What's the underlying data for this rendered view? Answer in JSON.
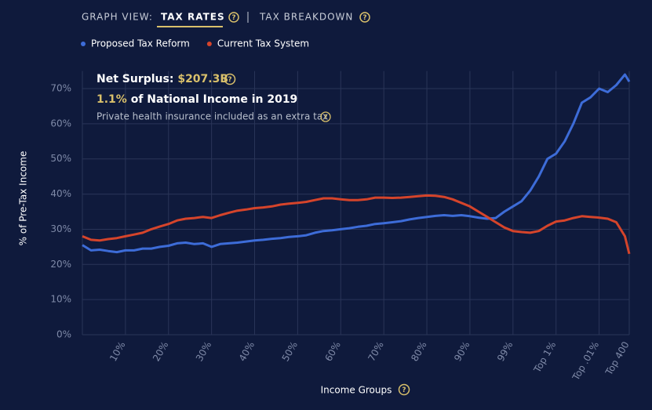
{
  "header": {
    "view_label": "GRAPH VIEW:",
    "tabs": [
      "TAX RATES",
      "TAX BREAKDOWN"
    ]
  },
  "chart_data": {
    "type": "line",
    "ylabel": "% of Pre-Tax Income",
    "xlabel": "Income Groups",
    "annotation": {
      "label": "Net Surplus:",
      "value": "$207.3B",
      "share": "1.1%",
      "share_text": "of National Income in 2019",
      "note": "Private health insurance included as an extra tax"
    },
    "x": [
      0,
      2,
      4,
      6,
      8,
      10,
      12,
      14,
      16,
      18,
      20,
      22,
      24,
      26,
      28,
      30,
      32,
      34,
      36,
      38,
      40,
      42,
      44,
      46,
      48,
      50,
      52,
      54,
      56,
      58,
      60,
      62,
      64,
      66,
      68,
      70,
      72,
      74,
      76,
      78,
      80,
      82,
      84,
      86,
      88,
      90,
      92,
      94,
      96,
      98,
      100,
      102,
      104,
      106,
      108,
      110,
      112,
      114,
      116,
      118,
      120,
      122,
      124,
      126,
      127
    ],
    "xlim": [
      0,
      127
    ],
    "xticks": [
      {
        "value": 10,
        "label": "10%"
      },
      {
        "value": 20,
        "label": "20%"
      },
      {
        "value": 30,
        "label": "30%"
      },
      {
        "value": 40,
        "label": "40%"
      },
      {
        "value": 50,
        "label": "50%"
      },
      {
        "value": 60,
        "label": "60%"
      },
      {
        "value": 70,
        "label": "70%"
      },
      {
        "value": 80,
        "label": "80%"
      },
      {
        "value": 90,
        "label": "90%"
      },
      {
        "value": 100,
        "label": "99%"
      },
      {
        "value": 110,
        "label": "Top 1%"
      },
      {
        "value": 120,
        "label": "Top .01%"
      },
      {
        "value": 127,
        "label": "Top 400"
      }
    ],
    "ylim": [
      0,
      75
    ],
    "yticks": [
      {
        "value": 0,
        "label": "0%"
      },
      {
        "value": 10,
        "label": "10%"
      },
      {
        "value": 20,
        "label": "20%"
      },
      {
        "value": 30,
        "label": "30%"
      },
      {
        "value": 40,
        "label": "40%"
      },
      {
        "value": 50,
        "label": "50%"
      },
      {
        "value": 60,
        "label": "60%"
      },
      {
        "value": 70,
        "label": "70%"
      }
    ],
    "grid": true,
    "series": [
      {
        "name": "Proposed Tax Reform",
        "color": "#3d6cd8",
        "values": [
          25.5,
          24,
          24.2,
          23.8,
          23.5,
          24,
          24,
          24.5,
          24.5,
          25,
          25.3,
          26,
          26.2,
          25.8,
          26,
          25,
          25.8,
          26,
          26.2,
          26.5,
          26.8,
          27,
          27.3,
          27.5,
          27.8,
          28,
          28.3,
          29,
          29.5,
          29.7,
          30,
          30.3,
          30.7,
          31,
          31.5,
          31.7,
          32,
          32.3,
          32.8,
          33.2,
          33.5,
          33.8,
          34,
          33.8,
          34,
          33.7,
          33.3,
          33,
          33.2,
          35,
          36.5,
          38,
          41,
          45,
          50,
          51.5,
          55,
          60,
          66,
          67.5,
          70,
          69,
          71,
          74,
          72
        ]
      },
      {
        "name": "Current Tax System",
        "color": "#d5442b",
        "values": [
          28,
          27,
          26.8,
          27.2,
          27.5,
          28,
          28.5,
          29,
          30,
          30.8,
          31.5,
          32.5,
          33,
          33.2,
          33.5,
          33.2,
          34,
          34.7,
          35.3,
          35.6,
          36,
          36.2,
          36.5,
          37,
          37.3,
          37.5,
          37.8,
          38.3,
          38.8,
          38.8,
          38.5,
          38.3,
          38.3,
          38.5,
          39,
          39,
          38.9,
          39,
          39.2,
          39.4,
          39.6,
          39.5,
          39.2,
          38.5,
          37.5,
          36.5,
          35,
          33.5,
          32,
          30.5,
          29.5,
          29.2,
          29,
          29.5,
          31,
          32.2,
          32.5,
          33.2,
          33.7,
          33.5,
          33.3,
          33,
          32,
          28,
          23
        ]
      }
    ]
  }
}
